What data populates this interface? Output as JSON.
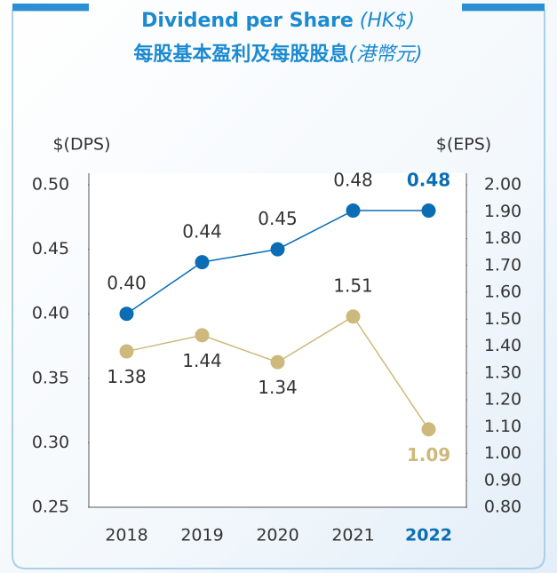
{
  "chart_data": {
    "type": "line",
    "title": "Dividend per Share",
    "title_unit": "(HK$)",
    "subtitle": "每股基本盈利及每股股息",
    "subtitle_unit": "(港幣元)",
    "y_label": "$(DPS)",
    "y2_label": "$(EPS)",
    "categories": [
      "2018",
      "2019",
      "2020",
      "2021",
      "2022"
    ],
    "highlight_index": 4,
    "ylim": [
      0.25,
      0.5
    ],
    "yticks": [
      {
        "value": 0.25,
        "label": "0.25"
      },
      {
        "value": 0.3,
        "label": "0.30"
      },
      {
        "value": 0.35,
        "label": "0.35"
      },
      {
        "value": 0.4,
        "label": "0.40"
      },
      {
        "value": 0.45,
        "label": "0.45"
      },
      {
        "value": 0.5,
        "label": "0.50"
      }
    ],
    "y2lim": [
      0.8,
      2.0
    ],
    "y2ticks": [
      {
        "value": 0.8,
        "label": "0.80"
      },
      {
        "value": 0.9,
        "label": "0.90"
      },
      {
        "value": 1.0,
        "label": "1.00"
      },
      {
        "value": 1.1,
        "label": "1.10"
      },
      {
        "value": 1.2,
        "label": "1.20"
      },
      {
        "value": 1.3,
        "label": "1.30"
      },
      {
        "value": 1.4,
        "label": "1.40"
      },
      {
        "value": 1.5,
        "label": "1.50"
      },
      {
        "value": 1.6,
        "label": "1.60"
      },
      {
        "value": 1.7,
        "label": "1.70"
      },
      {
        "value": 1.8,
        "label": "1.80"
      },
      {
        "value": 1.9,
        "label": "1.90"
      },
      {
        "value": 2.0,
        "label": "2.00"
      }
    ],
    "series": [
      {
        "name": "DPS",
        "color": "#0b6db3",
        "values": [
          0.4,
          0.44,
          0.45,
          0.48,
          0.48
        ],
        "value_labels": [
          "0.40",
          "0.44",
          "0.45",
          "0.48",
          "0.48"
        ]
      },
      {
        "name": "EPS",
        "color": "#cdb97c",
        "axis": "y2",
        "values": [
          1.38,
          1.44,
          1.34,
          1.51,
          1.09
        ]
      }
    ]
  }
}
